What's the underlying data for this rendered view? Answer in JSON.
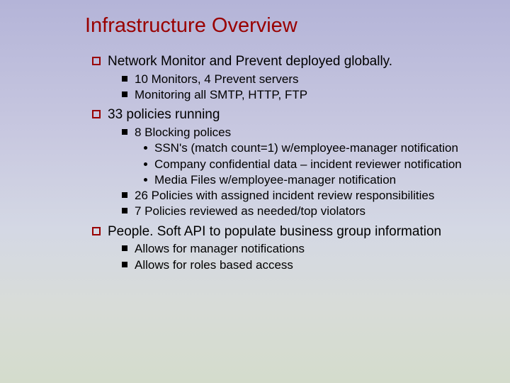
{
  "title": "Infrastructure Overview",
  "bg_gradient_top": "#b4b4d8",
  "bg_gradient_bottom": "#d4dccc",
  "title_color": "#990000",
  "bullet1_color": "#990000",
  "bullet2_color": "#000000",
  "bullet3_color": "#000000",
  "text_color": "#000000",
  "title_fontsize": 29,
  "level1_fontsize": 19,
  "level2_fontsize": 17,
  "level3_fontsize": 17,
  "sections": [
    {
      "text": "Network Monitor and Prevent deployed globally.",
      "children": [
        {
          "text": "10 Monitors, 4 Prevent servers"
        },
        {
          "text": "Monitoring all SMTP, HTTP, FTP"
        }
      ]
    },
    {
      "text": "33 policies running",
      "children": [
        {
          "text": "8 Blocking polices",
          "children": [
            {
              "text": "SSN's (match count=1) w/employee-manager notification"
            },
            {
              "text": "Company confidential data – incident reviewer notification"
            },
            {
              "text": "Media Files w/employee-manager notification"
            }
          ]
        },
        {
          "text": "26 Policies with assigned incident review responsibilities"
        },
        {
          "text": "7 Policies reviewed as needed/top violators"
        }
      ]
    },
    {
      "text": "People. Soft API to populate business group information",
      "children": [
        {
          "text": "Allows for manager notifications"
        },
        {
          "text": "Allows for roles based access"
        }
      ]
    }
  ]
}
